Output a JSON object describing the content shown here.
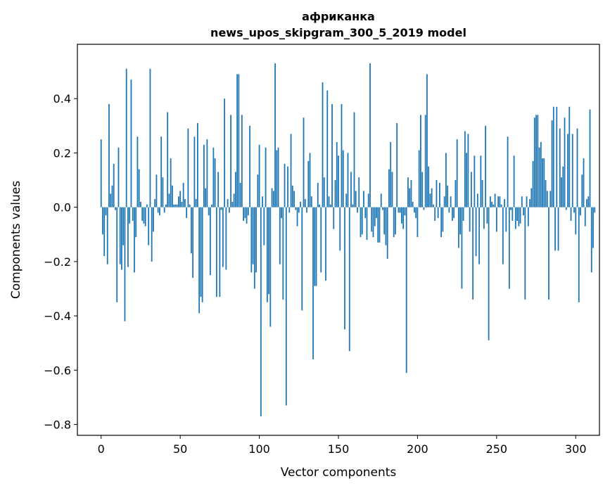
{
  "chart_data": {
    "type": "bar",
    "title": "африканка",
    "subtitle": "news_upos_skipgram_300_5_2019 model",
    "xlabel": "Vector components",
    "ylabel": "Components values",
    "xlim": [
      -15,
      315
    ],
    "ylim": [
      -0.84,
      0.6
    ],
    "xticks": [
      0,
      50,
      100,
      150,
      200,
      250,
      300
    ],
    "yticks": [
      -0.8,
      -0.6,
      -0.4,
      -0.2,
      0.0,
      0.2,
      0.4
    ],
    "ytick_labels": [
      "−0.8",
      "−0.6",
      "−0.4",
      "−0.2",
      "0.0",
      "0.2",
      "0.4"
    ],
    "grid": false,
    "bar_color": "#1f77b4",
    "series": [
      {
        "values": [
          0.25,
          -0.1,
          -0.18,
          -0.03,
          -0.21,
          0.38,
          0.05,
          0.08,
          0.16,
          -0.01,
          -0.35,
          0.22,
          -0.21,
          -0.23,
          -0.14,
          -0.42,
          0.51,
          -0.22,
          -0.06,
          0.47,
          -0.05,
          -0.24,
          -0.11,
          0.26,
          0.14,
          0.02,
          -0.05,
          -0.06,
          -0.07,
          0.01,
          -0.14,
          0.51,
          -0.2,
          -0.09,
          0.03,
          0.12,
          -0.02,
          -0.03,
          0.26,
          0.11,
          -0.02,
          0.01,
          0.35,
          0.05,
          0.18,
          0.08,
          0.01,
          0.01,
          0.01,
          0.04,
          0.06,
          0.02,
          0.09,
          0.03,
          -0.04,
          0.29,
          0.01,
          -0.17,
          -0.26,
          0.26,
          0.03,
          0.31,
          -0.39,
          -0.33,
          -0.35,
          0.23,
          0.07,
          0.25,
          -0.03,
          -0.25,
          0.01,
          0.22,
          0.18,
          -0.33,
          0.13,
          -0.33,
          -0.01,
          -0.22,
          0.4,
          -0.23,
          0.03,
          -0.02,
          0.34,
          0.02,
          0.05,
          0.13,
          0.49,
          0.49,
          0.09,
          0.34,
          -0.05,
          -0.04,
          -0.06,
          -0.03,
          0.3,
          -0.24,
          -0.21,
          -0.3,
          -0.24,
          0.12,
          0.23,
          -0.77,
          0.04,
          -0.14,
          0.22,
          -0.35,
          -0.32,
          -0.44,
          0.07,
          0.06,
          0.53,
          0.21,
          0.22,
          -0.21,
          -0.04,
          -0.34,
          0.16,
          -0.73,
          0.15,
          -0.02,
          0.27,
          0.08,
          0.06,
          -0.01,
          -0.07,
          -0.02,
          0.02,
          -0.38,
          0.33,
          0.03,
          -0.02,
          0.17,
          0.2,
          0.04,
          -0.56,
          -0.29,
          -0.29,
          0.09,
          0.01,
          -0.24,
          0.46,
          0.11,
          -0.27,
          0.43,
          0.04,
          0.01,
          0.38,
          -0.08,
          0.1,
          0.24,
          0.19,
          -0.16,
          0.38,
          0.21,
          -0.45,
          0.05,
          0.2,
          -0.53,
          0.13,
          0.01,
          0.35,
          0.06,
          -0.02,
          0.11,
          -0.11,
          -0.1,
          0.06,
          -0.04,
          -0.12,
          0.05,
          0.53,
          -0.09,
          -0.11,
          -0.07,
          -0.04,
          -0.13,
          -0.13,
          0.05,
          -0.01,
          -0.1,
          -0.14,
          -0.19,
          0.14,
          0.24,
          0.13,
          -0.11,
          -0.1,
          0.31,
          -0.02,
          -0.02,
          -0.06,
          -0.08,
          -0.03,
          -0.61,
          0.11,
          0.07,
          0.1,
          0.02,
          -0.02,
          -0.04,
          -0.11,
          0.21,
          0.34,
          0.13,
          -0.01,
          0.34,
          0.49,
          0.15,
          0.05,
          0.07,
          0.01,
          -0.05,
          0.1,
          -0.04,
          0.09,
          -0.11,
          -0.09,
          0.04,
          0.2,
          0.08,
          -0.02,
          0.04,
          -0.05,
          -0.04,
          0.1,
          0.25,
          -0.15,
          -0.1,
          -0.3,
          -0.05,
          0.28,
          0.2,
          0.27,
          -0.09,
          0.13,
          -0.34,
          0.19,
          -0.18,
          0.05,
          -0.21,
          0.19,
          0.1,
          -0.08,
          0.3,
          -0.06,
          -0.49,
          0.04,
          0.02,
          0.01,
          0.05,
          -0.09,
          0.04,
          0.04,
          0.01,
          -0.21,
          0.03,
          -0.09,
          0.26,
          -0.3,
          -0.01,
          -0.05,
          0.19,
          -0.08,
          -0.05,
          -0.07,
          -0.06,
          0.04,
          -0.03,
          -0.34,
          0.04,
          -0.07,
          0.03,
          0.07,
          0.17,
          0.33,
          0.34,
          0.34,
          0.22,
          0.24,
          0.18,
          0.18,
          0.1,
          0.06,
          -0.34,
          0.06,
          0.32,
          0.37,
          -0.16,
          0.37,
          -0.16,
          0.29,
          0.11,
          0.15,
          0.33,
          -0.01,
          0.27,
          0.37,
          -0.05,
          0.27,
          -0.02,
          -0.1,
          0.29,
          -0.35,
          -0.03,
          0.12,
          0.18,
          -0.07,
          0.03,
          0.04,
          0.36,
          -0.24,
          -0.15,
          -0.02
        ]
      }
    ]
  }
}
